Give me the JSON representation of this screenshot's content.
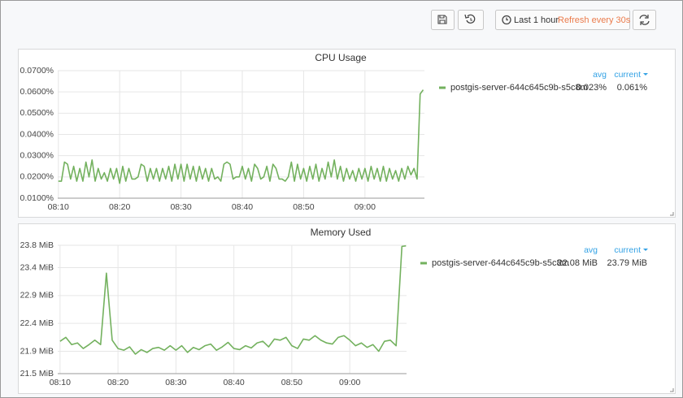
{
  "toolbar": {
    "time_range": "Last 1 hour",
    "refresh": "Refresh every 30s"
  },
  "chart_data": [
    {
      "type": "line",
      "title": "CPU Usage",
      "x": [
        490,
        490.5,
        491,
        491.5,
        492,
        492.5,
        493,
        493.5,
        494,
        494.5,
        495,
        495.5,
        496,
        496.5,
        497,
        497.5,
        498,
        498.5,
        499,
        499.5,
        500,
        500.5,
        501,
        501.5,
        502,
        502.5,
        503,
        503.5,
        504,
        504.5,
        505,
        505.5,
        506,
        506.5,
        507,
        507.5,
        508,
        508.5,
        509,
        509.5,
        510,
        510.5,
        511,
        511.5,
        512,
        512.5,
        513,
        513.5,
        514,
        514.5,
        515,
        515.5,
        516,
        516.5,
        517,
        517.5,
        518,
        518.5,
        519,
        519.5,
        520,
        520.5,
        521,
        521.5,
        522,
        522.5,
        523,
        523.5,
        524,
        524.5,
        525,
        525.5,
        526,
        526.5,
        527,
        527.5,
        528,
        528.5,
        529,
        529.5,
        530,
        530.5,
        531,
        531.5,
        532,
        532.5,
        533,
        533.5,
        534,
        534.5,
        535,
        535.5,
        536,
        536.5,
        537,
        537.5,
        538,
        538.5,
        539,
        539.5,
        540,
        540.5,
        541,
        541.5,
        542,
        542.5,
        543,
        543.5,
        544,
        544.5,
        545,
        545.5,
        546,
        546.5,
        547,
        547.5,
        548,
        548.5,
        549,
        549.5
      ],
      "xlim": [
        489.9,
        549.7
      ],
      "xticks": [
        {
          "value": 490,
          "label": "08:10"
        },
        {
          "value": 500,
          "label": "08:20"
        },
        {
          "value": 510,
          "label": "08:30"
        },
        {
          "value": 520,
          "label": "08:40"
        },
        {
          "value": 530,
          "label": "08:50"
        },
        {
          "value": 540,
          "label": "09:00"
        }
      ],
      "ylim": [
        0.01,
        0.07
      ],
      "yticks": [
        {
          "value": 0.01,
          "label": "0.0100%"
        },
        {
          "value": 0.02,
          "label": "0.0200%"
        },
        {
          "value": 0.03,
          "label": "0.0300%"
        },
        {
          "value": 0.04,
          "label": "0.0400%"
        },
        {
          "value": 0.05,
          "label": "0.0500%"
        },
        {
          "value": 0.06,
          "label": "0.0600%"
        },
        {
          "value": 0.07,
          "label": "0.0700%"
        }
      ],
      "grid": true,
      "legend_columns": [
        "avg",
        "current"
      ],
      "series": [
        {
          "name": "postgis-server-644c645c9b-s5c8m",
          "color": "#73b15e",
          "values": [
            0.018,
            0.018,
            0.027,
            0.026,
            0.019,
            0.025,
            0.018,
            0.024,
            0.018,
            0.027,
            0.02,
            0.028,
            0.018,
            0.024,
            0.019,
            0.022,
            0.018,
            0.024,
            0.019,
            0.024,
            0.017,
            0.025,
            0.018,
            0.024,
            0.019,
            0.019,
            0.02,
            0.026,
            0.025,
            0.018,
            0.024,
            0.019,
            0.024,
            0.018,
            0.024,
            0.019,
            0.025,
            0.018,
            0.026,
            0.019,
            0.026,
            0.018,
            0.026,
            0.019,
            0.025,
            0.018,
            0.025,
            0.019,
            0.024,
            0.018,
            0.024,
            0.019,
            0.02,
            0.018,
            0.026,
            0.027,
            0.026,
            0.019,
            0.02,
            0.02,
            0.025,
            0.019,
            0.024,
            0.018,
            0.026,
            0.024,
            0.019,
            0.02,
            0.025,
            0.018,
            0.026,
            0.024,
            0.019,
            0.019,
            0.018,
            0.02,
            0.027,
            0.018,
            0.026,
            0.019,
            0.024,
            0.018,
            0.025,
            0.019,
            0.026,
            0.018,
            0.024,
            0.019,
            0.027,
            0.02,
            0.028,
            0.019,
            0.025,
            0.018,
            0.024,
            0.019,
            0.023,
            0.018,
            0.024,
            0.019,
            0.024,
            0.018,
            0.025,
            0.019,
            0.024,
            0.018,
            0.025,
            0.018,
            0.024,
            0.019,
            0.023,
            0.018,
            0.024,
            0.019,
            0.025,
            0.021,
            0.024,
            0.019,
            0.059,
            0.061
          ],
          "stats": [
            0.023,
            0.061
          ],
          "stat_labels": [
            "0.023%",
            "0.061%"
          ]
        }
      ]
    },
    {
      "type": "line",
      "title": "Memory Used",
      "x": [
        490,
        491,
        492,
        493,
        494,
        495,
        496,
        497,
        498,
        499,
        500,
        501,
        502,
        503,
        504,
        505,
        506,
        507,
        508,
        509,
        510,
        511,
        512,
        513,
        514,
        515,
        516,
        517,
        518,
        519,
        520,
        521,
        522,
        523,
        524,
        525,
        526,
        527,
        528,
        529,
        530,
        531,
        532,
        533,
        534,
        535,
        536,
        537,
        538,
        539,
        540,
        541,
        542,
        543,
        544,
        545,
        546,
        547,
        548,
        549,
        549.7
      ],
      "xlim": [
        489.6,
        549.8
      ],
      "xticks": [
        {
          "value": 490,
          "label": "08:10"
        },
        {
          "value": 500,
          "label": "08:20"
        },
        {
          "value": 510,
          "label": "08:30"
        },
        {
          "value": 520,
          "label": "08:40"
        },
        {
          "value": 530,
          "label": "08:50"
        },
        {
          "value": 540,
          "label": "09:00"
        }
      ],
      "ylim": [
        21.5,
        23.8
      ],
      "yticks": [
        {
          "value": 21.5,
          "label": "21.5 MiB"
        },
        {
          "value": 21.9,
          "label": "21.9 MiB"
        },
        {
          "value": 22.4,
          "label": "22.4 MiB"
        },
        {
          "value": 22.9,
          "label": "22.9 MiB"
        },
        {
          "value": 23.4,
          "label": "23.4 MiB"
        },
        {
          "value": 23.8,
          "label": "23.8 MiB"
        }
      ],
      "grid": true,
      "legend_columns": [
        "avg",
        "current"
      ],
      "series": [
        {
          "name": "postgis-server-644c645c9b-s5c8m",
          "color": "#73b15e",
          "values": [
            22.08,
            22.15,
            22.02,
            22.05,
            21.95,
            22.02,
            22.1,
            22.02,
            23.3,
            22.1,
            21.95,
            21.92,
            21.98,
            21.85,
            21.93,
            21.88,
            21.95,
            21.97,
            21.92,
            22.0,
            21.92,
            22.0,
            21.88,
            21.97,
            21.93,
            22.0,
            22.03,
            21.92,
            21.98,
            22.06,
            21.95,
            21.93,
            22.0,
            21.96,
            22.05,
            22.08,
            21.98,
            22.12,
            22.1,
            22.15,
            22.0,
            21.95,
            22.12,
            22.1,
            22.18,
            22.1,
            22.05,
            22.03,
            22.15,
            22.18,
            22.1,
            22.0,
            22.05,
            21.97,
            22.02,
            21.9,
            22.08,
            22.1,
            22.0,
            23.78,
            23.79
          ],
          "stats": [
            22.08,
            23.79
          ],
          "stat_labels": [
            "22.08 MiB",
            "23.79 MiB"
          ]
        }
      ]
    }
  ]
}
